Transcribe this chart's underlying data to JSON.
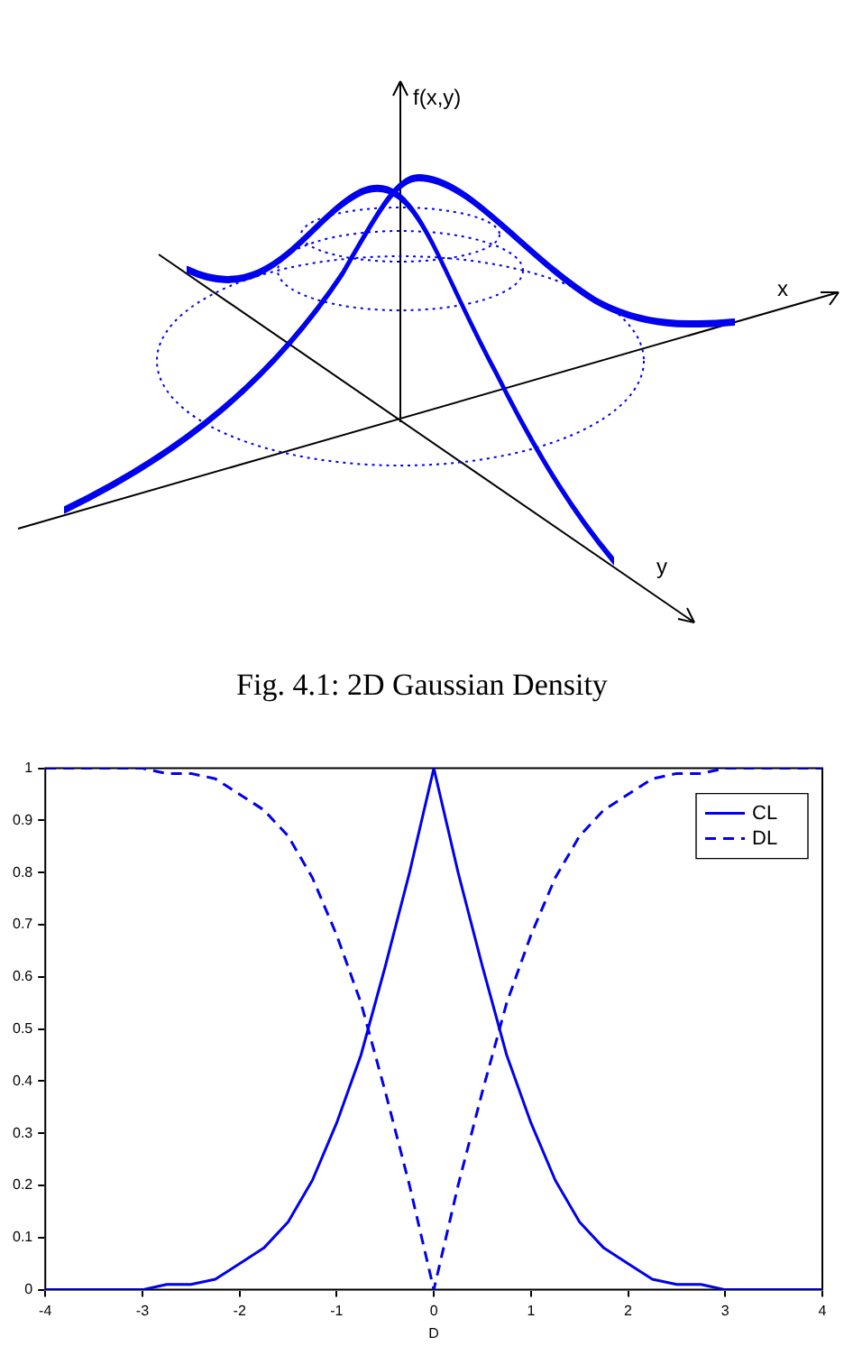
{
  "chart_data": [
    {
      "type": "other",
      "title": "Fig. 4.1: 2D Gaussian Density",
      "annotations": [
        "f(x,y)",
        "x",
        "y"
      ]
    },
    {
      "type": "line",
      "xlabel": "D",
      "x": [
        -4,
        -3.75,
        -3.5,
        -3.25,
        -3,
        -2.75,
        -2.5,
        -2.25,
        -2,
        -1.75,
        -1.5,
        -1.25,
        -1,
        -0.75,
        -0.5,
        -0.25,
        0,
        0.25,
        0.5,
        0.75,
        1,
        1.25,
        1.5,
        1.75,
        2,
        2.25,
        2.5,
        2.75,
        3,
        3.25,
        3.5,
        3.75,
        4
      ],
      "series": [
        {
          "name": "CL",
          "color": "#0000ee",
          "line_style": "solid",
          "values": [
            0,
            0,
            0,
            0,
            0,
            0.01,
            0.01,
            0.02,
            0.05,
            0.08,
            0.13,
            0.21,
            0.32,
            0.45,
            0.62,
            0.8,
            1,
            0.8,
            0.62,
            0.45,
            0.32,
            0.21,
            0.13,
            0.08,
            0.05,
            0.02,
            0.01,
            0.01,
            0,
            0,
            0,
            0,
            0
          ]
        },
        {
          "name": "DL",
          "color": "#0000ee",
          "line_style": "dashed",
          "values": [
            1,
            1,
            1,
            1,
            1,
            0.99,
            0.99,
            0.98,
            0.95,
            0.92,
            0.87,
            0.79,
            0.68,
            0.55,
            0.38,
            0.2,
            0,
            0.2,
            0.38,
            0.55,
            0.68,
            0.79,
            0.87,
            0.92,
            0.95,
            0.98,
            0.99,
            0.99,
            1,
            1,
            1,
            1,
            1
          ]
        }
      ],
      "xlim": [
        -4,
        4
      ],
      "xticks": [
        -4,
        -3,
        -2,
        -1,
        0,
        1,
        2,
        3,
        4
      ],
      "ylim": [
        0,
        1
      ],
      "yticks": [
        0,
        0.1,
        0.2,
        0.3,
        0.4,
        0.5,
        0.6,
        0.7,
        0.8,
        0.9,
        1
      ],
      "grid": false,
      "legend": "top right",
      "marker": "none"
    }
  ]
}
